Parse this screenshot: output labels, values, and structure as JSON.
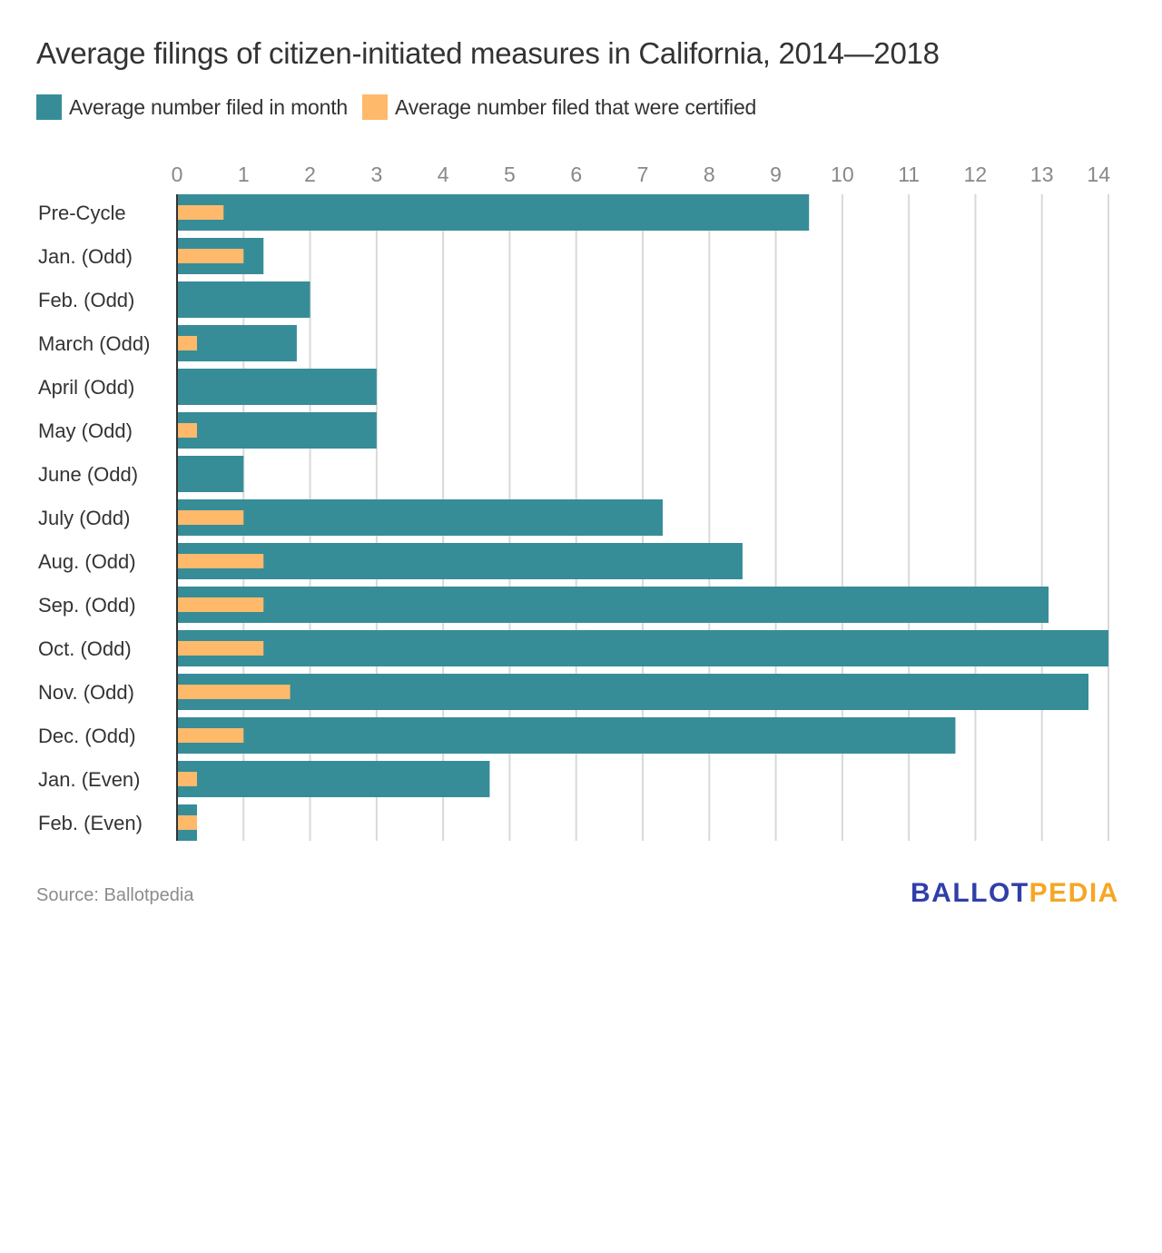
{
  "chart_data": {
    "type": "bar",
    "orientation": "horizontal",
    "title": "Average filings of citizen-initiated measures in California, 2014—2018",
    "xlabel": "",
    "ylabel": "",
    "xlim": [
      0,
      14
    ],
    "x_ticks": [
      "0",
      "1",
      "2",
      "3",
      "4",
      "5",
      "6",
      "7",
      "8",
      "9",
      "10",
      "11",
      "12",
      "13",
      "14"
    ],
    "grid": true,
    "legend_position": "top-left",
    "categories": [
      "Pre-Cycle",
      "Jan. (Odd)",
      "Feb. (Odd)",
      "March (Odd)",
      "April (Odd)",
      "May (Odd)",
      "June (Odd)",
      "July (Odd)",
      "Aug. (Odd)",
      "Sep. (Odd)",
      "Oct. (Odd)",
      "Nov. (Odd)",
      "Dec. (Odd)",
      "Jan. (Even)",
      "Feb. (Even)"
    ],
    "series": [
      {
        "name": "Average number filed in month",
        "color": "#368d98",
        "values": [
          9.5,
          1.3,
          2.0,
          1.8,
          3.0,
          3.0,
          1.0,
          7.3,
          8.5,
          13.1,
          14.0,
          13.7,
          11.7,
          4.7,
          0.3
        ]
      },
      {
        "name": "Average number filed that were certified",
        "color": "#ffb96b",
        "values": [
          0.7,
          1.0,
          0,
          0.3,
          0,
          0.3,
          0,
          1.0,
          1.3,
          1.3,
          1.3,
          1.7,
          1.0,
          0.3,
          0.3
        ]
      }
    ]
  },
  "footer": {
    "source": "Source: Ballotpedia",
    "brand_part1": "BALLOT",
    "brand_part2": "PEDIA",
    "brand_color1": "#2f3fa8",
    "brand_color2": "#f5a623"
  }
}
